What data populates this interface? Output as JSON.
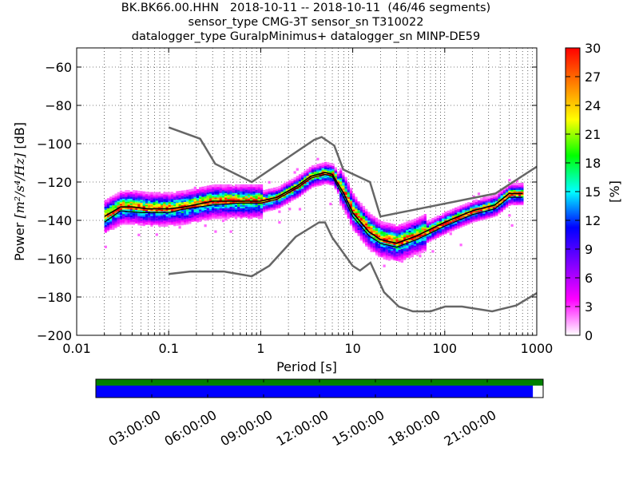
{
  "title_lines": [
    "BK.BK66.00.HHN   2018-10-11 -- 2018-10-11  (46/46 segments)",
    "sensor_type CMG-3T sensor_sn T310022",
    "datalogger_type GuralpMinimus+ datalogger_sn MINP-DE59"
  ],
  "chart_data": {
    "type": "heatmap",
    "x_scale": "log",
    "xlabel": "Period [s]",
    "ylabel_prefix": "Power ",
    "ylabel_unit": "[m²/s⁴/Hz]",
    "ylabel_suffix": " [dB]",
    "xlim": [
      0.01,
      1000
    ],
    "ylim": [
      -200,
      -50
    ],
    "x_ticks": [
      {
        "value": 0.01,
        "label": "0.01"
      },
      {
        "value": 0.1,
        "label": "0.1"
      },
      {
        "value": 1,
        "label": "1"
      },
      {
        "value": 10,
        "label": "10"
      },
      {
        "value": 100,
        "label": "100"
      },
      {
        "value": 1000,
        "label": "1000"
      }
    ],
    "y_ticks": [
      {
        "value": -60,
        "label": "−60"
      },
      {
        "value": -80,
        "label": "−80"
      },
      {
        "value": -100,
        "label": "−100"
      },
      {
        "value": -120,
        "label": "−120"
      },
      {
        "value": -140,
        "label": "−140"
      },
      {
        "value": -160,
        "label": "−160"
      },
      {
        "value": -180,
        "label": "−180"
      },
      {
        "value": -200,
        "label": "−200"
      }
    ],
    "grid": "dotted",
    "colorbar": {
      "label": "[%]",
      "min": 0,
      "max": 30,
      "ticks": [
        {
          "value": 0,
          "label": "0"
        },
        {
          "value": 3,
          "label": "3"
        },
        {
          "value": 6,
          "label": "6"
        },
        {
          "value": 9,
          "label": "9"
        },
        {
          "value": 12,
          "label": "12"
        },
        {
          "value": 15,
          "label": "15"
        },
        {
          "value": 18,
          "label": "18"
        },
        {
          "value": 21,
          "label": "21"
        },
        {
          "value": 24,
          "label": "24"
        },
        {
          "value": 27,
          "label": "27"
        },
        {
          "value": 30,
          "label": "30"
        }
      ],
      "colormap": [
        "#ffffff",
        "#ff00ff",
        "#7f00ff",
        "#0000ff",
        "#00ffff",
        "#00ff00",
        "#ffff00",
        "#ff8000",
        "#ff0000"
      ]
    },
    "nhnm_curve": [
      [
        0.1,
        -91.5
      ],
      [
        0.22,
        -97.4
      ],
      [
        0.32,
        -110.5
      ],
      [
        0.8,
        -120
      ],
      [
        3.8,
        -98
      ],
      [
        4.6,
        -96.5
      ],
      [
        6.3,
        -101
      ],
      [
        7.9,
        -113.5
      ],
      [
        15.4,
        -120
      ],
      [
        20,
        -138
      ],
      [
        354.8,
        -126
      ],
      [
        1000,
        -112
      ]
    ],
    "nlnm_curve": [
      [
        0.1,
        -168
      ],
      [
        0.17,
        -166.7
      ],
      [
        0.4,
        -166.7
      ],
      [
        0.8,
        -169.2
      ],
      [
        1.24,
        -163.7
      ],
      [
        2.4,
        -148.6
      ],
      [
        4.3,
        -141.1
      ],
      [
        5,
        -141.1
      ],
      [
        6,
        -149
      ],
      [
        10,
        -163.8
      ],
      [
        12,
        -166.2
      ],
      [
        15.6,
        -162.1
      ],
      [
        21.9,
        -177.5
      ],
      [
        31.6,
        -185
      ],
      [
        45,
        -187.5
      ],
      [
        70,
        -187.5
      ],
      [
        101,
        -185
      ],
      [
        154,
        -185
      ],
      [
        328,
        -187.5
      ],
      [
        600,
        -184.4
      ],
      [
        1000,
        -178
      ]
    ],
    "mode_curve": [
      [
        0.02,
        -138
      ],
      [
        0.03,
        -133
      ],
      [
        0.04,
        -133
      ],
      [
        0.06,
        -134
      ],
      [
        0.1,
        -134
      ],
      [
        0.15,
        -133
      ],
      [
        0.3,
        -130
      ],
      [
        0.6,
        -130
      ],
      [
        1,
        -130
      ],
      [
        1.5,
        -128
      ],
      [
        2.5,
        -122
      ],
      [
        3.5,
        -117
      ],
      [
        5,
        -115
      ],
      [
        6,
        -116
      ],
      [
        8,
        -126
      ],
      [
        10,
        -136
      ],
      [
        15,
        -146
      ],
      [
        20,
        -150
      ],
      [
        30,
        -152
      ],
      [
        50,
        -148
      ],
      [
        100,
        -141
      ],
      [
        200,
        -135
      ],
      [
        350,
        -132
      ],
      [
        500,
        -126
      ],
      [
        700,
        -126
      ]
    ],
    "mean_curve": [
      [
        0.02,
        -141
      ],
      [
        0.03,
        -135
      ],
      [
        0.05,
        -136
      ],
      [
        0.1,
        -136
      ],
      [
        0.15,
        -134
      ],
      [
        0.3,
        -132
      ],
      [
        0.6,
        -131
      ],
      [
        1,
        -131
      ],
      [
        1.5,
        -129
      ],
      [
        2.5,
        -123
      ],
      [
        3.5,
        -118
      ],
      [
        5,
        -116
      ],
      [
        6,
        -117
      ],
      [
        8,
        -128
      ],
      [
        10,
        -138
      ],
      [
        15,
        -148
      ],
      [
        20,
        -152
      ],
      [
        30,
        -154
      ],
      [
        50,
        -150
      ],
      [
        100,
        -143
      ],
      [
        200,
        -137
      ],
      [
        350,
        -134
      ],
      [
        500,
        -128
      ],
      [
        700,
        -128
      ]
    ]
  },
  "timeline": {
    "ticks": [
      {
        "hour": 3,
        "label": "03:00:00"
      },
      {
        "hour": 6,
        "label": "06:00:00"
      },
      {
        "hour": 9,
        "label": "09:00:00"
      },
      {
        "hour": 12,
        "label": "12:00:00"
      },
      {
        "hour": 15,
        "label": "15:00:00"
      },
      {
        "hour": 18,
        "label": "18:00:00"
      },
      {
        "hour": 21,
        "label": "21:00:00"
      }
    ],
    "data_coverage_color": "#008000",
    "psd_coverage_color": "#0000ff",
    "data_coverage_fraction": 1.0,
    "psd_coverage_fraction": 0.977
  }
}
